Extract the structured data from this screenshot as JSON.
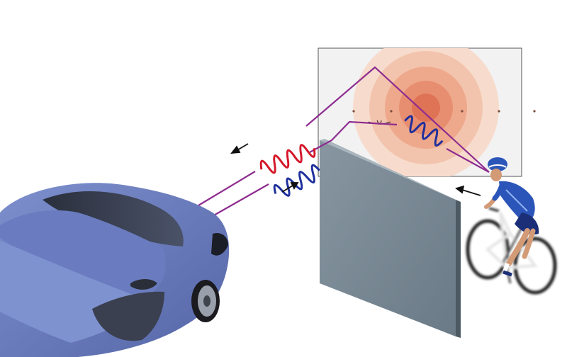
{
  "figure": {
    "colors": {
      "background": "#ffffff",
      "path_line": "#8e2c8f",
      "incident_wave": "#1f2f9c",
      "reflected_wave": "#d4172a",
      "car_body": "#6c7fbf",
      "wall": "#7b8c97",
      "field_rings": [
        "#f7dccd",
        "#f3c4ad",
        "#eea98c",
        "#e88e70",
        "#df7356"
      ],
      "cyclist_jersey": "#2b55b8",
      "arrow": "#111111"
    },
    "elements": {
      "car": "car-icon",
      "wall": "wall-panel",
      "cyclist": "cyclist-icon",
      "field_plane": "reflection-field-plane"
    }
  }
}
